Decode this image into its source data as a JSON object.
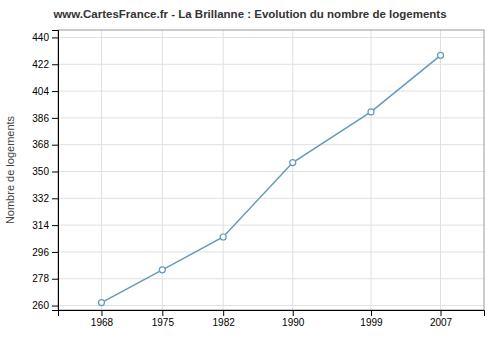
{
  "chart_data": {
    "type": "line",
    "title": "www.CartesFrance.fr - La Brillanne : Evolution du nombre de logements",
    "ylabel": "Nombre de logements",
    "x": [
      1968,
      1975,
      1982,
      1990,
      1999,
      2007
    ],
    "values": [
      262,
      284,
      306,
      356,
      390,
      428
    ],
    "color": "#6699bb",
    "marker": "circle",
    "xlim": [
      1963,
      2012
    ],
    "ylim": [
      257,
      445
    ],
    "xticks": [
      1968,
      1975,
      1982,
      1990,
      1999,
      2007
    ],
    "yticks": [
      260,
      278,
      296,
      314,
      332,
      350,
      368,
      386,
      404,
      422,
      440
    ],
    "grid": true
  }
}
